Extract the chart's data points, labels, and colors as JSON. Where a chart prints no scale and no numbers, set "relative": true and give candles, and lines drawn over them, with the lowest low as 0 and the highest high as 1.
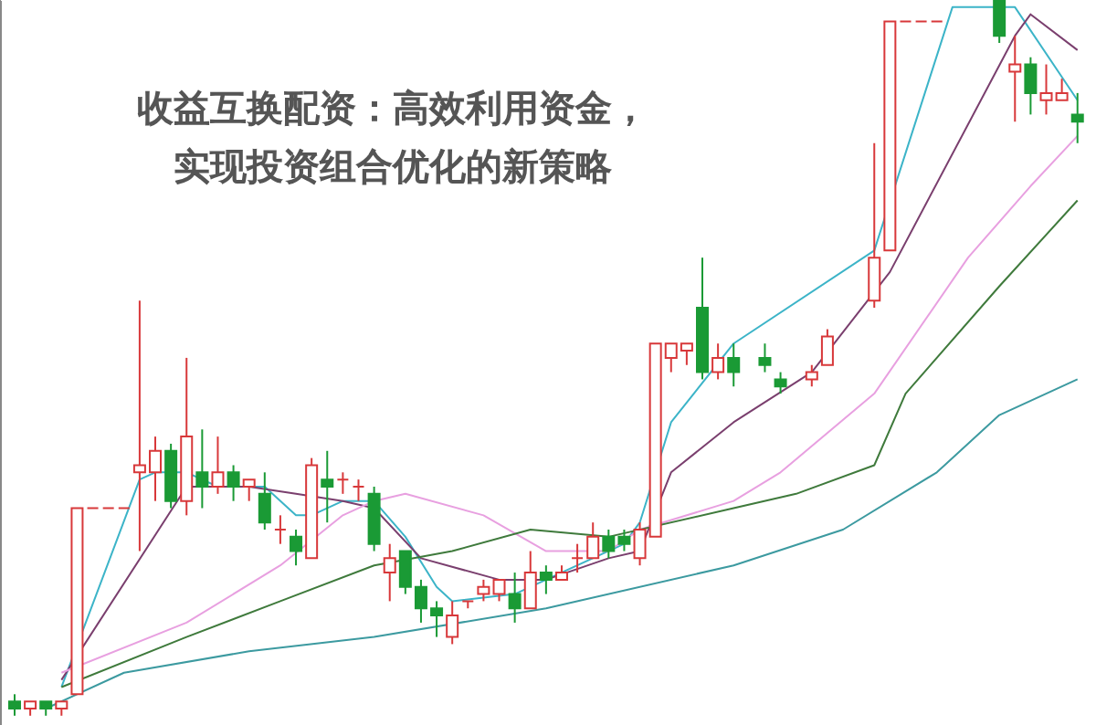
{
  "chart_data": {
    "type": "candlestick",
    "relative": true,
    "title": "收益互换配资：高效利用资金，实现投资组合优化的新策略",
    "categories": [
      null,
      null,
      null,
      null,
      null,
      null,
      null,
      null,
      null,
      null,
      null,
      null,
      null,
      null,
      null,
      null,
      null,
      null,
      null,
      null,
      null,
      null,
      null,
      null,
      null,
      null,
      null,
      null,
      null,
      null,
      null,
      null,
      null,
      null,
      null,
      null,
      null,
      null,
      null,
      null,
      null,
      null,
      null,
      null,
      null,
      null,
      null,
      null,
      null,
      null,
      null,
      null,
      null,
      null,
      null,
      null,
      null,
      null,
      null,
      null,
      null,
      null,
      null,
      null,
      null,
      null,
      null,
      null,
      null
    ],
    "ohlc": [
      [
        0.02,
        0.03,
        0,
        0.01
      ],
      [
        0.01,
        0.02,
        0,
        0.02
      ],
      [
        0.02,
        0.02,
        0,
        0.01
      ],
      [
        0.01,
        0.02,
        0,
        0.02
      ],
      [
        0.03,
        0.29,
        0.03,
        0.29
      ],
      [
        0.29,
        0.29,
        0.29,
        0.29
      ],
      [
        0.29,
        0.29,
        0.29,
        0.29
      ],
      [
        0.29,
        0.29,
        0.29,
        0.29
      ],
      [
        0.34,
        0.58,
        0.23,
        0.35
      ],
      [
        0.34,
        0.39,
        0.3,
        0.37
      ],
      [
        0.37,
        0.38,
        0.29,
        0.3
      ],
      [
        0.3,
        0.5,
        0.28,
        0.39
      ],
      [
        0.34,
        0.4,
        0.29,
        0.32
      ],
      [
        0.32,
        0.39,
        0.31,
        0.34
      ],
      [
        0.34,
        0.35,
        0.3,
        0.32
      ],
      [
        0.32,
        0.33,
        0.3,
        0.33
      ],
      [
        0.31,
        0.34,
        0.26,
        0.27
      ],
      [
        0.26,
        0.28,
        0.24,
        0.26
      ],
      [
        0.25,
        0.26,
        0.21,
        0.23
      ],
      [
        0.22,
        0.36,
        0.22,
        0.35
      ],
      [
        0.33,
        0.37,
        0.27,
        0.32
      ],
      [
        0.33,
        0.34,
        0.31,
        0.33
      ],
      [
        0.32,
        0.33,
        0.3,
        0.32
      ],
      [
        0.31,
        0.32,
        0.23,
        0.24
      ],
      [
        0.2,
        0.24,
        0.16,
        0.22
      ],
      [
        0.23,
        0.23,
        0.17,
        0.18
      ],
      [
        0.18,
        0.19,
        0.13,
        0.15
      ],
      [
        0.15,
        0.16,
        0.11,
        0.14
      ],
      [
        0.11,
        0.16,
        0.1,
        0.14
      ],
      [
        0.16,
        0.16,
        0.15,
        0.16
      ],
      [
        0.17,
        0.19,
        0.16,
        0.18
      ],
      [
        0.17,
        0.19,
        0.16,
        0.19
      ],
      [
        0.17,
        0.2,
        0.13,
        0.15
      ],
      [
        0.15,
        0.23,
        0.15,
        0.2
      ],
      [
        0.2,
        0.21,
        0.17,
        0.19
      ],
      [
        0.19,
        0.21,
        0.19,
        0.2
      ],
      [
        0.22,
        0.24,
        0.2,
        0.22
      ],
      [
        0.22,
        0.27,
        0.22,
        0.25
      ],
      [
        0.25,
        0.26,
        0.22,
        0.23
      ],
      [
        0.25,
        0.26,
        0.23,
        0.24
      ],
      [
        0.22,
        0.27,
        0.21,
        0.26
      ],
      [
        0.25,
        0.52,
        0.25,
        0.52
      ],
      [
        0.5,
        0.52,
        0.48,
        0.52
      ],
      [
        0.51,
        0.52,
        0.49,
        0.52
      ],
      [
        0.57,
        0.64,
        0.47,
        0.48
      ],
      [
        0.48,
        0.52,
        0.47,
        0.5
      ],
      [
        0.5,
        0.52,
        0.46,
        0.48
      ],
      null,
      [
        0.5,
        0.52,
        0.48,
        0.49
      ],
      [
        0.47,
        0.48,
        0.45,
        0.46
      ],
      null,
      [
        0.47,
        0.49,
        0.46,
        0.48
      ],
      [
        0.49,
        0.54,
        0.49,
        0.53
      ],
      null,
      null,
      [
        0.58,
        0.8,
        0.57,
        0.64
      ],
      [
        0.65,
        0.97,
        0.65,
        0.97
      ],
      [
        0.97,
        0.97,
        0.97,
        0.97
      ],
      [
        0.97,
        0.97,
        0.97,
        0.97
      ],
      [
        0.97,
        0.97,
        0.97,
        0.97
      ],
      null,
      null,
      null,
      [
        1,
        1,
        0.94,
        0.95
      ],
      [
        0.9,
        0.95,
        0.83,
        0.91
      ],
      [
        0.91,
        0.92,
        0.84,
        0.87
      ],
      [
        0.86,
        0.91,
        0.84,
        0.87
      ],
      [
        0.86,
        0.89,
        0.86,
        0.87
      ],
      [
        0.84,
        0.87,
        0.8,
        0.83
      ]
    ],
    "series": [
      {
        "type": "line",
        "color": "#3cb4c8",
        "values": [
          null,
          null,
          null,
          0.04,
          null,
          null,
          null,
          null,
          0.33,
          0.34,
          null,
          0.34,
          null,
          0.32,
          null,
          null,
          0.32,
          null,
          0.28,
          0.28,
          null,
          0.3,
          null,
          0.3,
          null,
          0.25,
          null,
          0.18,
          0.16,
          null,
          null,
          null,
          0.17,
          null,
          0.19,
          null,
          0.21,
          null,
          null,
          0.24,
          0.27,
          null,
          0.41,
          null,
          null,
          null,
          0.52,
          null,
          null,
          null,
          null,
          null,
          null,
          null,
          null,
          0.65,
          null,
          null,
          null,
          null,
          0.99,
          null,
          null,
          null,
          0.99,
          null,
          null,
          null,
          0.86
        ]
      },
      {
        "type": "line",
        "color": "#7a3f6e",
        "values": [
          null,
          null,
          null,
          0.05,
          null,
          null,
          null,
          null,
          null,
          null,
          null,
          0.32,
          null,
          null,
          null,
          0.32,
          null,
          null,
          0.31,
          null,
          null,
          0.3,
          null,
          0.29,
          null,
          null,
          0.22,
          null,
          null,
          null,
          null,
          0.19,
          null,
          null,
          0.19,
          null,
          null,
          null,
          0.22,
          null,
          0.23,
          null,
          0.34,
          null,
          null,
          null,
          0.41,
          null,
          null,
          null,
          null,
          0.48,
          null,
          null,
          null,
          null,
          0.62,
          null,
          null,
          null,
          null,
          null,
          null,
          null,
          0.95,
          0.98,
          null,
          null,
          0.93
        ]
      },
      {
        "type": "line",
        "color": "#e8a0e0",
        "values": [
          null,
          null,
          null,
          0.06,
          null,
          null,
          null,
          null,
          null,
          null,
          null,
          0.13,
          null,
          null,
          null,
          null,
          null,
          0.21,
          null,
          null,
          null,
          0.28,
          null,
          0.3,
          null,
          0.31,
          null,
          null,
          null,
          null,
          0.28,
          null,
          null,
          null,
          0.23,
          null,
          null,
          null,
          0.23,
          null,
          0.26,
          null,
          null,
          null,
          null,
          null,
          0.3,
          null,
          null,
          0.34,
          null,
          null,
          null,
          null,
          null,
          0.45,
          null,
          null,
          null,
          null,
          null,
          0.64,
          null,
          null,
          null,
          0.74,
          null,
          null,
          0.81
        ]
      },
      {
        "type": "line",
        "color": "#3f7a3c",
        "values": [
          null,
          null,
          null,
          0.04,
          null,
          null,
          null,
          null,
          null,
          null,
          null,
          0.11,
          null,
          null,
          null,
          null,
          null,
          0.16,
          null,
          null,
          null,
          null,
          null,
          0.21,
          null,
          null,
          null,
          null,
          0.23,
          null,
          null,
          null,
          null,
          0.26,
          null,
          null,
          null,
          null,
          0.25,
          null,
          null,
          null,
          null,
          null,
          null,
          null,
          0.29,
          null,
          null,
          null,
          0.31,
          null,
          null,
          null,
          null,
          0.35,
          null,
          0.45,
          null,
          null,
          null,
          null,
          null,
          0.6,
          null,
          null,
          null,
          null,
          0.72
        ]
      },
      {
        "type": "line",
        "color": "#3c9aa0",
        "values": [
          null,
          null,
          0.01,
          null,
          null,
          null,
          null,
          0.06,
          null,
          null,
          null,
          null,
          null,
          null,
          null,
          0.09,
          null,
          null,
          null,
          null,
          null,
          null,
          null,
          0.11,
          null,
          null,
          null,
          null,
          null,
          null,
          null,
          null,
          null,
          null,
          0.15,
          null,
          null,
          null,
          null,
          null,
          null,
          null,
          null,
          null,
          null,
          null,
          0.21,
          null,
          null,
          null,
          null,
          null,
          null,
          0.26,
          null,
          null,
          null,
          null,
          null,
          0.34,
          null,
          null,
          null,
          0.42,
          null,
          null,
          null,
          null,
          0.47
        ]
      }
    ],
    "marker": "none",
    "line_style": "solid"
  }
}
